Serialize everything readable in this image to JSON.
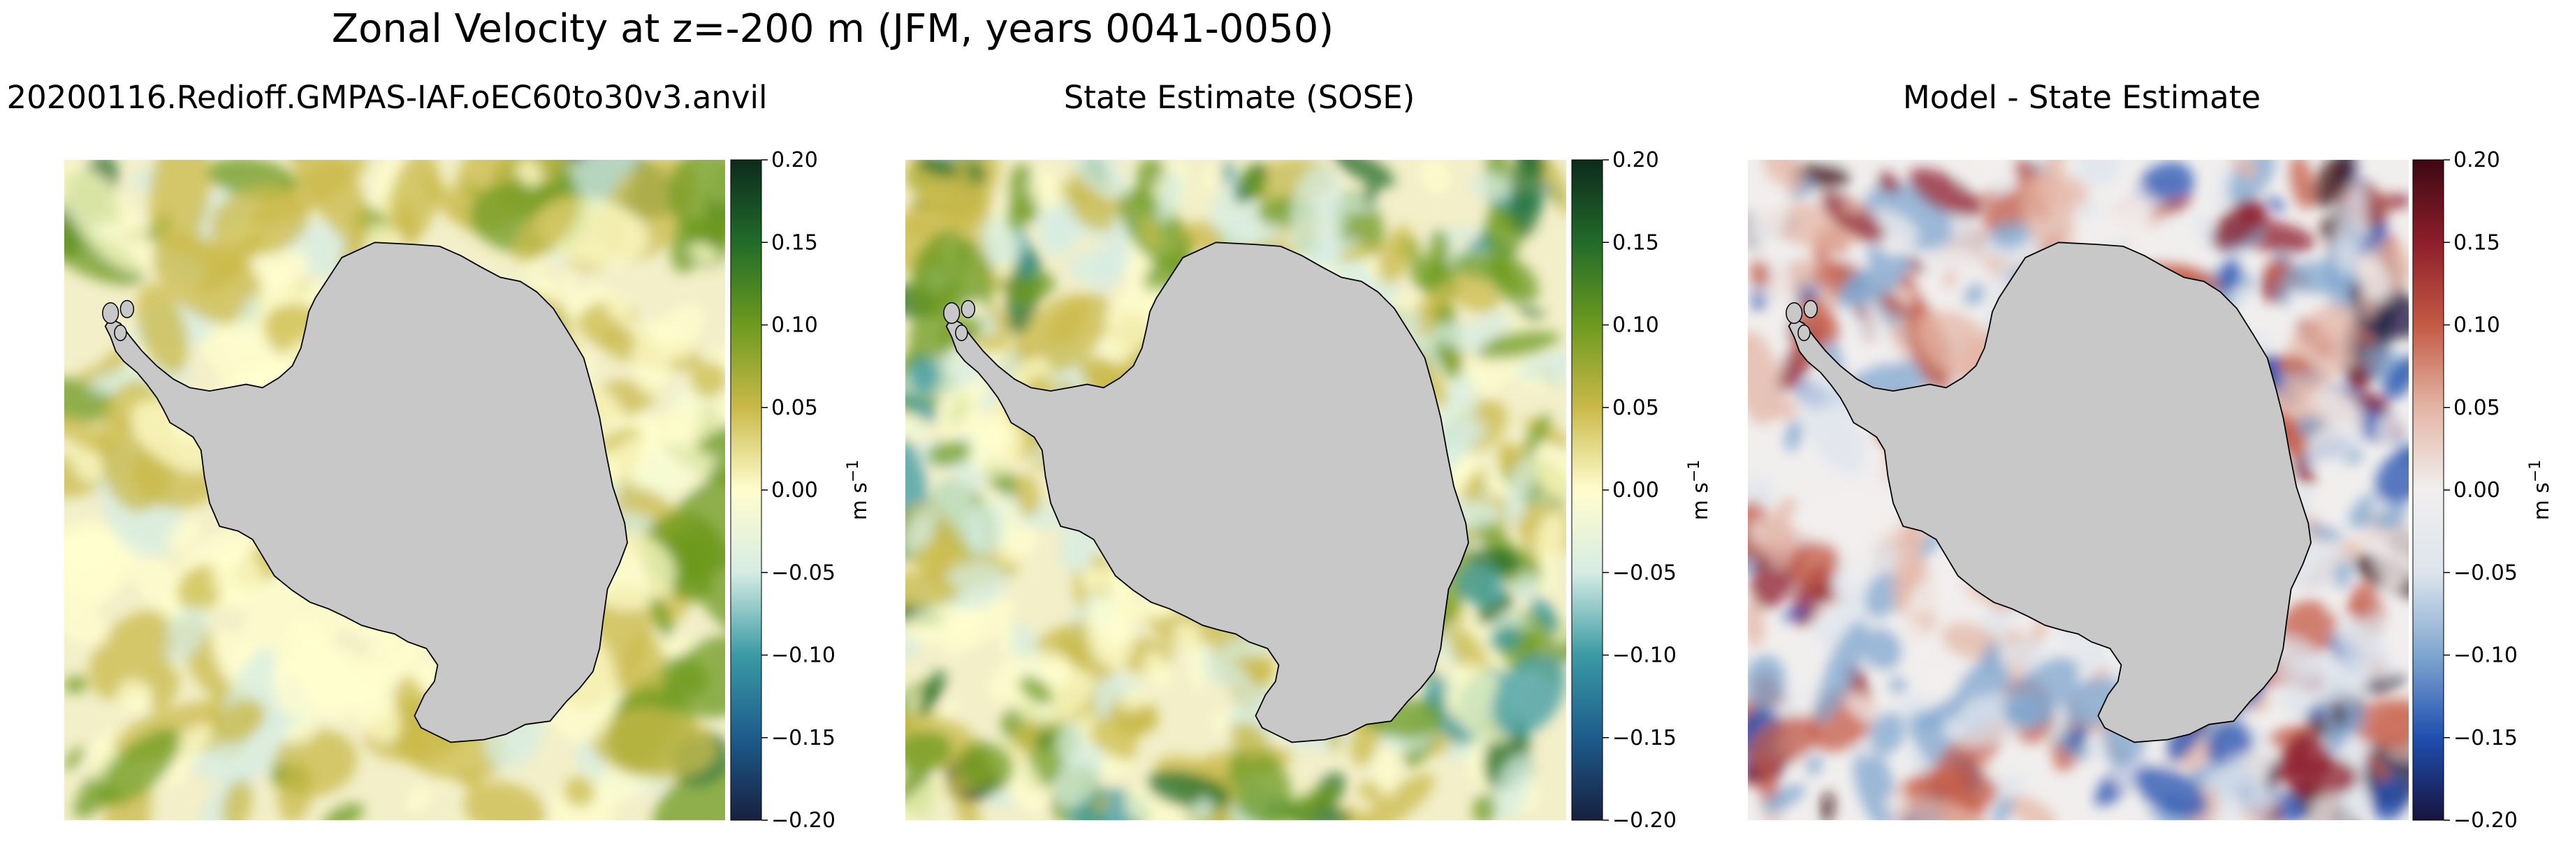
{
  "figure": {
    "suptitle": "Zonal Velocity at z=-200 m (JFM, years 0041-0050)"
  },
  "chart_data": [
    {
      "type": "heatmap",
      "title": "20200116.Redioff.GMPAS-IAF.oEC60to30v3.anvil",
      "colormap": "cmocean-delta",
      "colorbar": {
        "label": "m s",
        "label_exponent": "−1",
        "vmin": -0.2,
        "vmax": 0.2,
        "ticks": [
          0.2,
          0.15,
          0.1,
          0.05,
          0.0,
          -0.05,
          -0.1,
          -0.15,
          -0.2
        ],
        "tick_labels": [
          "0.20",
          "0.15",
          "0.10",
          "0.05",
          "0.00",
          "−0.05",
          "−0.10",
          "−0.15",
          "−0.20"
        ]
      },
      "colors": [
        "#17203f",
        "#1d5c8c",
        "#3a9aa4",
        "#d6ece3",
        "#fffdcd",
        "#c9b94a",
        "#6d9a1f",
        "#216b2a",
        "#0d2a1c"
      ],
      "land_color": "#c8c8c8"
    },
    {
      "type": "heatmap",
      "title": "State Estimate (SOSE)",
      "colormap": "cmocean-delta",
      "colorbar": {
        "label": "m s",
        "label_exponent": "−1",
        "vmin": -0.2,
        "vmax": 0.2,
        "ticks": [
          0.2,
          0.15,
          0.1,
          0.05,
          0.0,
          -0.05,
          -0.1,
          -0.15,
          -0.2
        ],
        "tick_labels": [
          "0.20",
          "0.15",
          "0.10",
          "0.05",
          "0.00",
          "−0.05",
          "−0.10",
          "−0.15",
          "−0.20"
        ]
      },
      "colors": [
        "#17203f",
        "#1d5c8c",
        "#3a9aa4",
        "#d6ece3",
        "#fffdcd",
        "#c9b94a",
        "#6d9a1f",
        "#216b2a",
        "#0d2a1c"
      ],
      "land_color": "#c8c8c8"
    },
    {
      "type": "heatmap",
      "title": "Model - State Estimate",
      "colormap": "cmocean-balance",
      "colorbar": {
        "label": "m s",
        "label_exponent": "−1",
        "vmin": -0.2,
        "vmax": 0.2,
        "ticks": [
          0.2,
          0.15,
          0.1,
          0.05,
          0.0,
          -0.05,
          -0.1,
          -0.15,
          -0.2
        ],
        "tick_labels": [
          "0.20",
          "0.15",
          "0.10",
          "0.05",
          "0.00",
          "−0.05",
          "−0.10",
          "−0.15",
          "−0.20"
        ]
      },
      "colors": [
        "#17143f",
        "#1f4fb0",
        "#7fa6cf",
        "#dde4ec",
        "#f1efee",
        "#e4b5a5",
        "#c45a44",
        "#8e1e2b",
        "#3c0912"
      ],
      "land_color": "#c8c8c8"
    }
  ]
}
